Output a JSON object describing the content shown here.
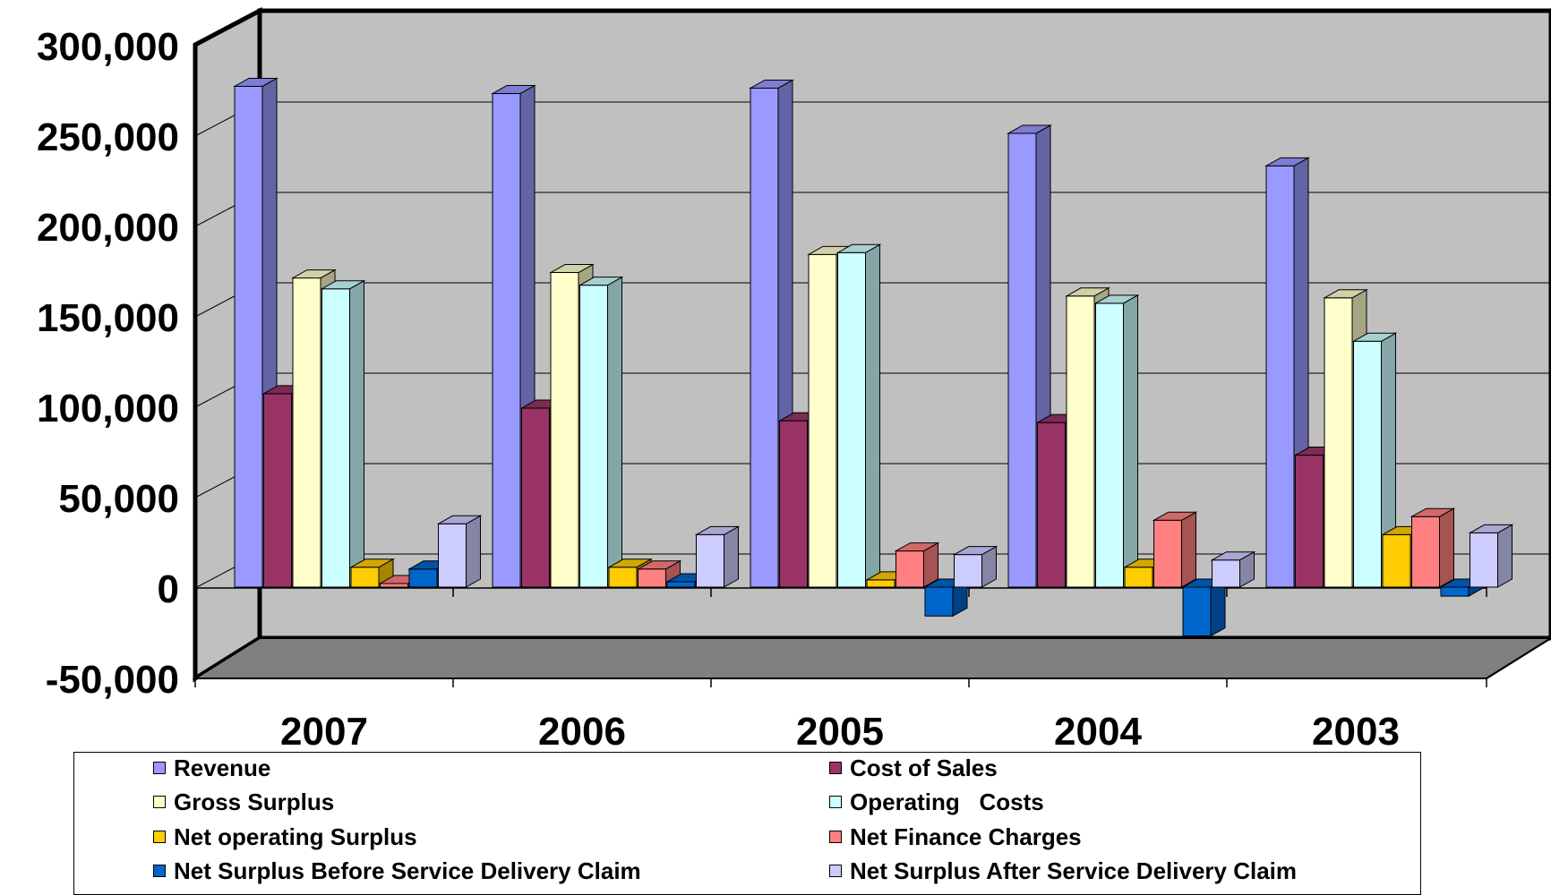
{
  "chart_data": {
    "type": "bar",
    "style": "3d-clustered-column",
    "categories": [
      "2007",
      "2006",
      "2005",
      "2004",
      "2003"
    ],
    "ylim": [
      -50000,
      300000
    ],
    "y_ticks": [
      "300,000",
      "250,000",
      "200,000",
      "150,000",
      "100,000",
      "50,000",
      "0",
      "-50,000"
    ],
    "y_tick_values": [
      300000,
      250000,
      200000,
      150000,
      100000,
      50000,
      0,
      -50000
    ],
    "grid": true,
    "legend_position": "bottom",
    "series": [
      {
        "name": "Revenue",
        "color": "#9999FF",
        "values": [
          277000,
          273000,
          276000,
          251000,
          233000
        ]
      },
      {
        "name": "Cost of Sales",
        "color": "#993366",
        "values": [
          107000,
          99000,
          92000,
          91000,
          73000
        ]
      },
      {
        "name": "Gross Surplus",
        "color": "#FFFFCC",
        "values": [
          171000,
          174000,
          184000,
          161000,
          160000
        ]
      },
      {
        "name": "Operating   Costs",
        "color": "#CCFFFF",
        "values": [
          165000,
          167000,
          185000,
          157000,
          136000
        ]
      },
      {
        "name": "Net operating Surplus",
        "color": "#FFCC00",
        "values": [
          11000,
          11000,
          4000,
          11000,
          29000
        ]
      },
      {
        "name": "Net Finance Charges",
        "color": "#FF8080",
        "values": [
          2000,
          10000,
          20000,
          37000,
          39000
        ]
      },
      {
        "name": "Net Surplus Before Service Delivery Claim",
        "color": "#0066CC",
        "values": [
          10000,
          3000,
          -16000,
          -27000,
          -5000
        ]
      },
      {
        "name": "Net Surplus After Service Delivery Claim",
        "color": "#CCCCFF",
        "values": [
          35000,
          29000,
          18000,
          15000,
          30000
        ]
      }
    ]
  }
}
